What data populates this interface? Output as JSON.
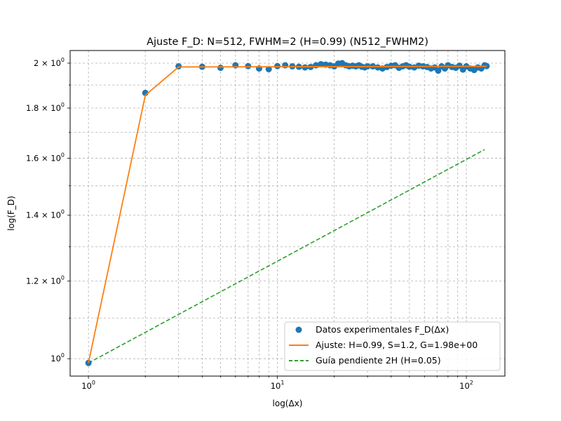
{
  "chart_data": {
    "type": "scatter",
    "title": "Ajuste F_D: N=512, FWHM=2 (H=0.99) (N512_FWHM2)",
    "xlabel": "log(Δx)",
    "ylabel": "log(F_D)",
    "xscale": "log",
    "yscale": "log",
    "xlim": [
      0.8,
      160
    ],
    "ylim": [
      0.96,
      2.06
    ],
    "grid": true,
    "legend_position": "lower-right",
    "x_ticks": [
      {
        "value": 1,
        "base": "10",
        "exp": "0"
      },
      {
        "value": 10,
        "base": "10",
        "exp": "1"
      },
      {
        "value": 100,
        "base": "10",
        "exp": "2"
      }
    ],
    "y_ticks": [
      {
        "value": 1.0,
        "mant": "10",
        "exp": "0",
        "label": "10^0"
      },
      {
        "value": 1.2,
        "mant": "1.2 × 10",
        "exp": "0"
      },
      {
        "value": 1.4,
        "mant": "1.4 × 10",
        "exp": "0"
      },
      {
        "value": 1.6,
        "mant": "1.6 × 10",
        "exp": "0"
      },
      {
        "value": 1.8,
        "mant": "1.8 × 10",
        "exp": "0"
      },
      {
        "value": 2.0,
        "mant": "2 × 10",
        "exp": "0"
      }
    ],
    "series": [
      {
        "name": "Datos experimentales F_D(Δx)",
        "kind": "scatter",
        "color": "#1f77b4",
        "x": [
          1,
          2,
          3,
          4,
          5,
          6,
          7,
          8,
          9,
          10,
          11,
          12,
          13,
          14,
          15,
          16,
          17,
          18,
          19,
          20,
          21,
          22,
          23,
          24,
          25,
          26,
          27,
          28,
          29,
          30,
          32,
          34,
          36,
          38,
          40,
          42,
          44,
          46,
          48,
          50,
          53,
          56,
          59,
          62,
          65,
          68,
          71,
          74,
          77,
          80,
          84,
          88,
          92,
          96,
          100,
          105,
          110,
          115,
          120,
          125,
          128
        ],
        "y": [
          0.99,
          1.865,
          1.985,
          1.983,
          1.978,
          1.99,
          1.986,
          1.975,
          1.972,
          1.986,
          1.99,
          1.985,
          1.983,
          1.98,
          1.982,
          1.99,
          1.995,
          1.993,
          1.99,
          1.985,
          1.998,
          2.0,
          1.99,
          1.985,
          1.988,
          1.985,
          1.99,
          1.983,
          1.98,
          1.985,
          1.985,
          1.98,
          1.975,
          1.982,
          1.988,
          1.99,
          1.978,
          1.985,
          1.99,
          1.983,
          1.98,
          1.988,
          1.985,
          1.982,
          1.975,
          1.98,
          1.965,
          1.985,
          1.975,
          1.99,
          1.982,
          1.978,
          1.988,
          1.97,
          1.985,
          1.975,
          1.968,
          1.98,
          1.975,
          1.99,
          1.986
        ]
      },
      {
        "name": "Ajuste: H=0.99, S=1.2, G=1.98e+00",
        "kind": "line",
        "color": "#ff7f0e",
        "x": [
          1,
          2,
          3,
          128
        ],
        "y": [
          0.99,
          1.855,
          1.982,
          1.985
        ]
      },
      {
        "name": "Guía pendiente 2H (H=0.05)",
        "kind": "dashed-line",
        "color": "#2ca02c",
        "x": [
          1,
          125
        ],
        "y": [
          0.99,
          1.633
        ]
      }
    ]
  }
}
